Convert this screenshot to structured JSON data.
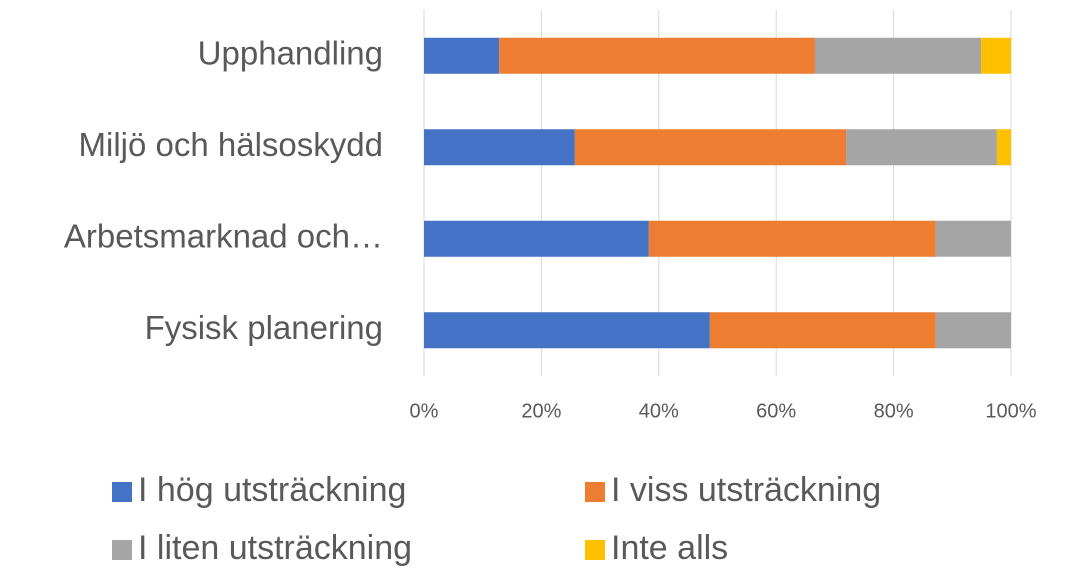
{
  "chart_data": {
    "type": "stacked_bar_horizontal",
    "categories": [
      "Upphandling",
      "Miljö och hälsoskydd",
      "Arbetsmarknad och…",
      "Fysisk planering"
    ],
    "series": [
      {
        "name": "I hög utsträckning",
        "color": "#4472c4",
        "values": [
          12.8,
          25.7,
          38.3,
          48.7
        ]
      },
      {
        "name": "I viss utsträckning",
        "color": "#ed7d31",
        "values": [
          53.8,
          46.2,
          48.9,
          38.5
        ]
      },
      {
        "name": "I liten utsträckning",
        "color": "#a5a5a5",
        "values": [
          28.3,
          25.7,
          12.8,
          12.8
        ]
      },
      {
        "name": "Inte alls",
        "color": "#ffc000",
        "values": [
          5.1,
          2.4,
          0,
          0
        ]
      }
    ],
    "xlim": [
      0,
      100
    ],
    "xticks": [
      {
        "value": 0,
        "label": "0%"
      },
      {
        "value": 20,
        "label": "20%"
      },
      {
        "value": 40,
        "label": "40%"
      },
      {
        "value": 60,
        "label": "60%"
      },
      {
        "value": 80,
        "label": "80%"
      },
      {
        "value": 100,
        "label": "100%"
      }
    ],
    "grid": true,
    "legend": "bottom"
  }
}
